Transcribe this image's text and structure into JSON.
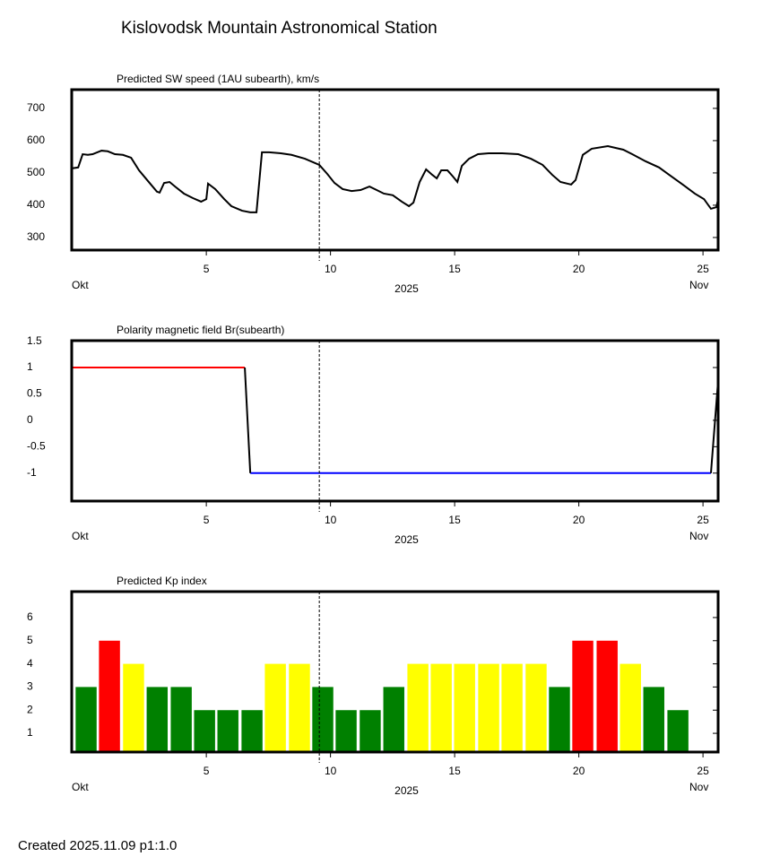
{
  "title": "Kislovodsk Mountain Astronomical Station",
  "footer": "Created  2025.11.09    p1:1.0",
  "chart_data": [
    {
      "type": "line",
      "title": "Predicted SW speed (1AU subearth), km/s",
      "x_start_label": "Okt",
      "x_end_label": "Nov",
      "x_year_label": "2025",
      "xlim": [
        -0.42,
        25.61
      ],
      "xticks": [
        5,
        10,
        15,
        20,
        25
      ],
      "ylim": [
        261,
        758
      ],
      "yticks": [
        300,
        400,
        500,
        600,
        700
      ],
      "marker_x": 9.55,
      "x": [
        -0.42,
        -0.16,
        0.02,
        0.23,
        0.42,
        0.78,
        1.03,
        1.32,
        1.64,
        1.97,
        2.29,
        2.65,
        3.01,
        3.12,
        3.3,
        3.52,
        3.77,
        4.1,
        4.46,
        4.79,
        5.0,
        5.07,
        5.36,
        5.72,
        6.01,
        6.44,
        6.77,
        7.02,
        7.24,
        7.53,
        8.0,
        8.43,
        8.97,
        9.55,
        9.87,
        10.16,
        10.49,
        10.85,
        11.21,
        11.57,
        11.86,
        12.15,
        12.51,
        12.87,
        13.16,
        13.34,
        13.59,
        13.85,
        14.1,
        14.28,
        14.46,
        14.71,
        14.93,
        15.11,
        15.29,
        15.58,
        15.94,
        16.37,
        16.91,
        17.56,
        18.07,
        18.54,
        18.93,
        19.26,
        19.69,
        19.87,
        20.16,
        20.52,
        21.17,
        21.79,
        22.15,
        22.69,
        23.23,
        23.59,
        24.13,
        24.67,
        25.04,
        25.32,
        25.54,
        25.61
      ],
      "series": [
        {
          "color": "#000000",
          "values": [
            514,
            517,
            558,
            556,
            558,
            569,
            567,
            558,
            556,
            547,
            508,
            475,
            442,
            439,
            469,
            472,
            456,
            436,
            422,
            411,
            419,
            467,
            450,
            419,
            397,
            383,
            378,
            378,
            564,
            564,
            561,
            556,
            544,
            525,
            497,
            469,
            450,
            444,
            447,
            458,
            447,
            436,
            431,
            411,
            397,
            408,
            472,
            511,
            494,
            483,
            508,
            508,
            489,
            472,
            522,
            544,
            558,
            561,
            561,
            558,
            544,
            525,
            494,
            472,
            464,
            478,
            556,
            575,
            583,
            572,
            558,
            536,
            517,
            497,
            467,
            436,
            419,
            389,
            394,
            419
          ]
        }
      ]
    },
    {
      "type": "line",
      "title": "Polarity magnetic field  Br(subearth)",
      "x_start_label": "Okt",
      "x_end_label": "Nov",
      "x_year_label": "2025",
      "xlim": [
        -0.42,
        25.61
      ],
      "xticks": [
        5,
        10,
        15,
        20,
        25
      ],
      "ylim": [
        -1.53,
        1.51
      ],
      "yticks": [
        1.5,
        1,
        0.5,
        0,
        -0.5,
        -1
      ],
      "marker_x": 9.55,
      "x": [
        -0.42,
        6.55,
        6.77,
        25.32,
        25.61
      ],
      "series": [
        {
          "color": "#ff0000",
          "values": [
            1,
            1,
            null,
            null,
            null
          ]
        },
        {
          "color": "#0000ff",
          "values": [
            null,
            null,
            -1,
            -1,
            null
          ]
        },
        {
          "color": "#000000",
          "values": [
            null,
            1,
            -1,
            null,
            null
          ]
        },
        {
          "color": "#000000",
          "values": [
            null,
            null,
            null,
            -1,
            0.75
          ]
        }
      ]
    },
    {
      "type": "bar",
      "title": "Predicted Kp index",
      "x_start_label": "Okt",
      "x_end_label": "Nov",
      "x_year_label": "2025",
      "xlim": [
        -0.42,
        25.61
      ],
      "xticks": [
        5,
        10,
        15,
        20,
        25
      ],
      "ylim": [
        0.19,
        7.12
      ],
      "yticks": [
        1,
        2,
        3,
        4,
        5,
        6
      ],
      "marker_x": 9.55,
      "x": [
        0.16,
        1.1,
        2.07,
        3.02,
        3.99,
        4.93,
        5.87,
        6.84,
        7.78,
        8.75,
        9.69,
        10.63,
        11.6,
        12.55,
        13.52,
        14.46,
        15.4,
        16.37,
        17.31,
        18.28,
        19.22,
        20.16,
        21.14,
        22.08,
        23.02,
        23.99
      ],
      "values": [
        3,
        5,
        4,
        3,
        3,
        2,
        2,
        2,
        4,
        4,
        3,
        2,
        2,
        3,
        4,
        4,
        4,
        4,
        4,
        4,
        3,
        5,
        5,
        4,
        3,
        2
      ],
      "colors": [
        "#008000",
        "#ff0000",
        "#ffff00",
        "#008000",
        "#008000",
        "#008000",
        "#008000",
        "#008000",
        "#ffff00",
        "#ffff00",
        "#008000",
        "#008000",
        "#008000",
        "#008000",
        "#ffff00",
        "#ffff00",
        "#ffff00",
        "#ffff00",
        "#ffff00",
        "#ffff00",
        "#008000",
        "#ff0000",
        "#ff0000",
        "#ffff00",
        "#008000",
        "#008000"
      ]
    }
  ]
}
